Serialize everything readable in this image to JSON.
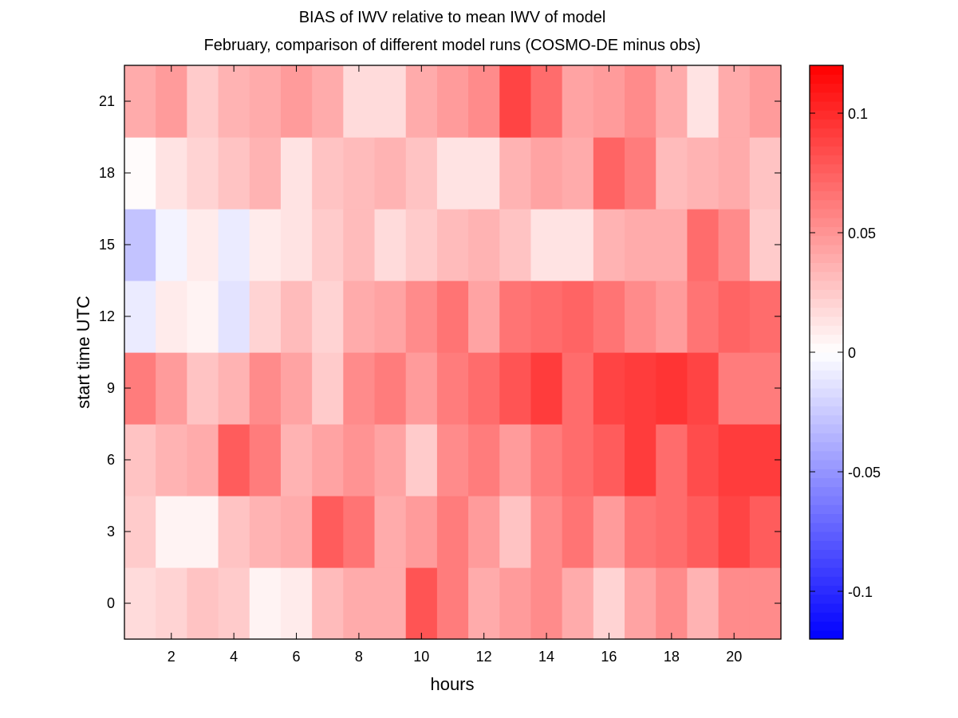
{
  "chart_data": {
    "type": "heatmap",
    "title": "BIAS of IWV relative to mean IWV of model",
    "subtitle": "February, comparison of different model runs (COSMO-DE minus obs)",
    "xlabel": "hours",
    "ylabel": "start time UTC",
    "x": [
      1,
      2,
      3,
      4,
      5,
      6,
      7,
      8,
      9,
      10,
      11,
      12,
      13,
      14,
      15,
      16,
      17,
      18,
      19,
      20,
      21
    ],
    "y": [
      0,
      3,
      6,
      9,
      12,
      15,
      18,
      21
    ],
    "xticks": [
      "2",
      "4",
      "6",
      "8",
      "10",
      "12",
      "14",
      "16",
      "18",
      "20"
    ],
    "xtick_values": [
      2,
      4,
      6,
      8,
      10,
      12,
      14,
      16,
      18,
      20
    ],
    "yticks": [
      "0",
      "3",
      "6",
      "9",
      "12",
      "15",
      "18",
      "21"
    ],
    "xlim": [
      0.5,
      21.5
    ],
    "ylim": [
      -1.5,
      22.5
    ],
    "colorbar": {
      "clim": [
        -0.12,
        0.12
      ],
      "ticks": [
        "-0.1",
        "-0.05",
        "0",
        "0.05",
        "0.1"
      ],
      "tick_values": [
        -0.1,
        -0.05,
        0,
        0.05,
        0.1
      ],
      "colormap": "blue-white-red",
      "low_color": "#0000ff",
      "mid_color": "#ffffff",
      "high_color": "#ff0000",
      "levels": 64
    },
    "values": {
      "0": [
        0.018,
        0.02,
        0.028,
        0.024,
        0.005,
        0.01,
        0.032,
        0.041,
        0.041,
        0.08,
        0.063,
        0.041,
        0.048,
        0.056,
        0.041,
        0.02,
        0.044,
        0.056,
        0.036,
        0.053,
        0.056
      ],
      "3": [
        0.024,
        0.005,
        0.005,
        0.028,
        0.035,
        0.041,
        0.076,
        0.064,
        0.041,
        0.048,
        0.06,
        0.048,
        0.028,
        0.056,
        0.064,
        0.048,
        0.064,
        0.068,
        0.076,
        0.087,
        0.076
      ],
      "6": [
        0.028,
        0.035,
        0.041,
        0.076,
        0.06,
        0.035,
        0.044,
        0.052,
        0.044,
        0.024,
        0.053,
        0.063,
        0.048,
        0.061,
        0.068,
        0.076,
        0.091,
        0.068,
        0.083,
        0.091,
        0.091
      ],
      "9": [
        0.062,
        0.048,
        0.028,
        0.035,
        0.053,
        0.044,
        0.024,
        0.053,
        0.063,
        0.048,
        0.063,
        0.071,
        0.079,
        0.091,
        0.068,
        0.087,
        0.091,
        0.095,
        0.087,
        0.063,
        0.061
      ],
      "12": [
        -0.009,
        0.008,
        0.004,
        -0.014,
        0.02,
        0.031,
        0.02,
        0.04,
        0.045,
        0.054,
        0.067,
        0.044,
        0.064,
        0.068,
        0.074,
        0.067,
        0.054,
        0.048,
        0.067,
        0.074,
        0.07
      ],
      "15": [
        -0.028,
        -0.005,
        0.008,
        -0.009,
        0.008,
        0.014,
        0.024,
        0.032,
        0.018,
        0.024,
        0.031,
        0.035,
        0.028,
        0.014,
        0.014,
        0.035,
        0.04,
        0.04,
        0.07,
        0.054,
        0.024
      ],
      "18": [
        0.0,
        0.014,
        0.02,
        0.028,
        0.035,
        0.014,
        0.029,
        0.032,
        0.035,
        0.028,
        0.014,
        0.014,
        0.036,
        0.044,
        0.041,
        0.074,
        0.06,
        0.031,
        0.035,
        0.04,
        0.028
      ],
      "21": [
        0.041,
        0.048,
        0.024,
        0.035,
        0.041,
        0.048,
        0.04,
        0.018,
        0.018,
        0.041,
        0.048,
        0.054,
        0.087,
        0.07,
        0.044,
        0.048,
        0.053,
        0.04,
        0.014,
        0.04,
        0.048
      ]
    }
  }
}
